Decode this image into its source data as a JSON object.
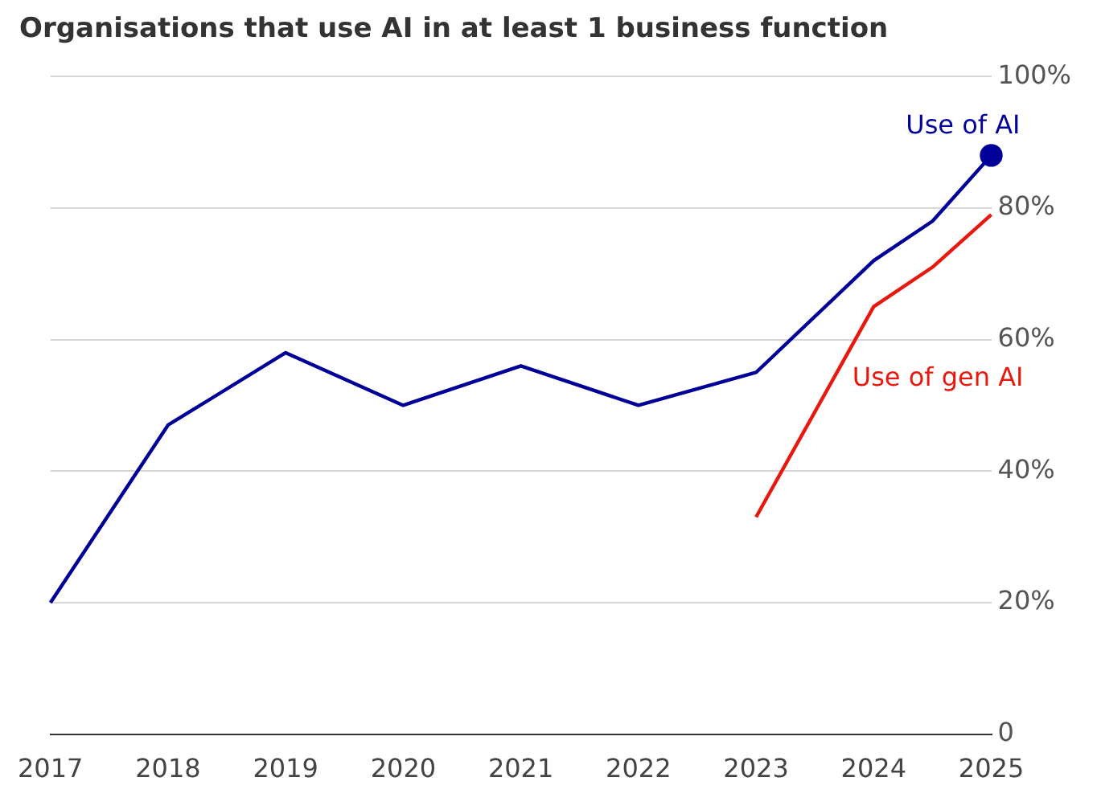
{
  "chart_data": {
    "type": "line",
    "title": "Organisations that use AI in at least 1 business function",
    "xlim": [
      2017,
      2025
    ],
    "xticks": [
      2017,
      2018,
      2019,
      2020,
      2021,
      2022,
      2023,
      2024,
      2025
    ],
    "ylim": [
      0,
      100
    ],
    "yticks": [
      {
        "value": 0,
        "label": "0"
      },
      {
        "value": 20,
        "label": "20%"
      },
      {
        "value": 40,
        "label": "40%"
      },
      {
        "value": 60,
        "label": "60%"
      },
      {
        "value": 80,
        "label": "80%"
      },
      {
        "value": 100,
        "label": "100%"
      }
    ],
    "grid": "y",
    "legend": false,
    "series": [
      {
        "name": "Use of AI",
        "color": "#000099",
        "x": [
          2017,
          2018,
          2019,
          2020,
          2021,
          2022,
          2023,
          2024,
          2024.5,
          2025
        ],
        "values": [
          20,
          47,
          58,
          50,
          56,
          50,
          55,
          72,
          78,
          88
        ]
      },
      {
        "name": "Use of gen AI",
        "color": "#e8180f",
        "x": [
          2023,
          2024,
          2024.5,
          2025
        ],
        "values": [
          33,
          65,
          71,
          79
        ]
      },
      {
        "type": "scatter",
        "color": "#000099",
        "marker": "circle",
        "x": [
          2025
        ],
        "values": [
          88
        ]
      }
    ]
  }
}
